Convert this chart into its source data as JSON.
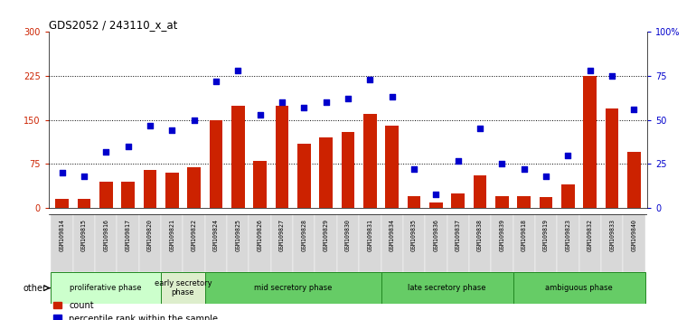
{
  "title": "GDS2052 / 243110_x_at",
  "samples": [
    "GSM109814",
    "GSM109815",
    "GSM109816",
    "GSM109817",
    "GSM109820",
    "GSM109821",
    "GSM109822",
    "GSM109824",
    "GSM109825",
    "GSM109826",
    "GSM109827",
    "GSM109828",
    "GSM109829",
    "GSM109830",
    "GSM109831",
    "GSM109834",
    "GSM109835",
    "GSM109836",
    "GSM109837",
    "GSM109838",
    "GSM109839",
    "GSM109818",
    "GSM109819",
    "GSM109823",
    "GSM109832",
    "GSM109833",
    "GSM109840"
  ],
  "counts": [
    15,
    15,
    45,
    45,
    65,
    60,
    70,
    150,
    175,
    80,
    175,
    110,
    120,
    130,
    160,
    140,
    20,
    10,
    25,
    55,
    20,
    20,
    18,
    40,
    225,
    170,
    95
  ],
  "percentile": [
    20,
    18,
    32,
    35,
    47,
    44,
    50,
    72,
    78,
    53,
    60,
    57,
    60,
    62,
    73,
    63,
    22,
    8,
    27,
    45,
    25,
    22,
    18,
    30,
    78,
    75,
    56
  ],
  "bar_color": "#cc2200",
  "dot_color": "#0000cc",
  "ylim_left": [
    0,
    300
  ],
  "ylim_right": [
    0,
    100
  ],
  "yticks_left": [
    0,
    75,
    150,
    225,
    300
  ],
  "yticks_right": [
    0,
    25,
    50,
    75,
    100
  ],
  "ytick_labels_left": [
    "0",
    "75",
    "150",
    "225",
    "300"
  ],
  "ytick_labels_right": [
    "0",
    "25",
    "50",
    "75",
    "100%"
  ],
  "hlines": [
    75,
    150,
    225
  ],
  "other_label": "other",
  "phases": [
    {
      "name": "proliferative phase",
      "start": 0,
      "end": 5,
      "color": "#ccffcc"
    },
    {
      "name": "early secretory\nphase",
      "start": 5,
      "end": 7,
      "color": "#ddeecc"
    },
    {
      "name": "mid secretory phase",
      "start": 7,
      "end": 15,
      "color": "#66cc66"
    },
    {
      "name": "late secretory phase",
      "start": 15,
      "end": 21,
      "color": "#66cc66"
    },
    {
      "name": "ambiguous phase",
      "start": 21,
      "end": 27,
      "color": "#66cc66"
    }
  ]
}
